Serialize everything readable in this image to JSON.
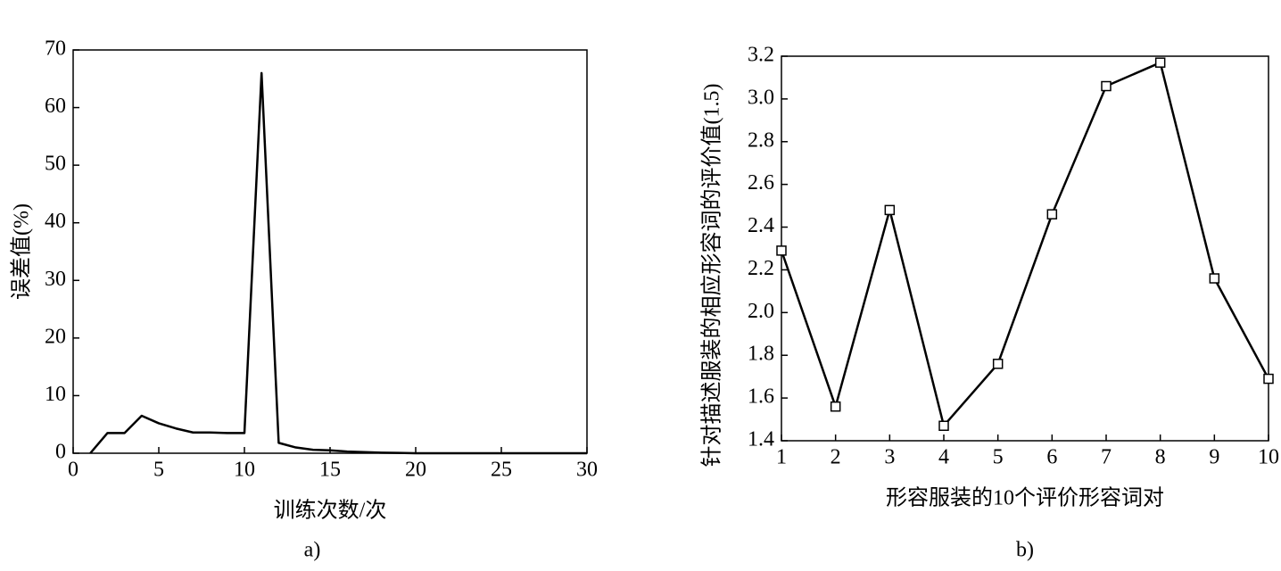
{
  "chart_data": [
    {
      "type": "line",
      "caption": "a)",
      "x_label": "训练次数/次",
      "y_label": "误差值(%)",
      "x": [
        1,
        2,
        3,
        4,
        5,
        6,
        7,
        8,
        9,
        10,
        11,
        12,
        13,
        14,
        15,
        16,
        17,
        18,
        19,
        20,
        21,
        22,
        23,
        24,
        25,
        26,
        27,
        28,
        29,
        30
      ],
      "values": [
        0,
        3.5,
        3.5,
        6.5,
        5.2,
        4.3,
        3.6,
        3.6,
        3.5,
        3.5,
        66,
        1.8,
        1,
        0.6,
        0.5,
        0.3,
        0.2,
        0.1,
        0.05,
        0,
        0,
        0,
        0,
        0,
        0,
        0,
        0,
        0,
        0,
        0
      ],
      "color": "#000000",
      "xlim": [
        0,
        30
      ],
      "xticks": [
        0,
        5,
        10,
        15,
        20,
        25,
        30
      ],
      "ylim": [
        0,
        70
      ],
      "yticks": [
        0,
        10,
        20,
        30,
        40,
        50,
        60,
        70
      ]
    },
    {
      "type": "line",
      "caption": "b)",
      "x_label": "形容服装的10个评价形容词对",
      "y_label": "针对描述服装的相应形容词的评价值(1.5)",
      "x": [
        1,
        2,
        3,
        4,
        5,
        6,
        7,
        8,
        9,
        10
      ],
      "values": [
        2.29,
        1.56,
        2.48,
        1.47,
        1.76,
        2.46,
        3.06,
        3.17,
        2.16,
        1.69
      ],
      "color": "#000000",
      "marker": "square",
      "xlim": [
        1,
        10
      ],
      "xticks": [
        1,
        2,
        3,
        4,
        5,
        6,
        7,
        8,
        9,
        10
      ],
      "ylim": [
        1.4,
        3.2
      ],
      "yticks": [
        1.4,
        1.6,
        1.8,
        {
          "value": 2,
          "label": "2.0"
        },
        2.2,
        2.4,
        2.6,
        2.8,
        {
          "value": 3,
          "label": "3.0"
        },
        3.2
      ]
    }
  ]
}
